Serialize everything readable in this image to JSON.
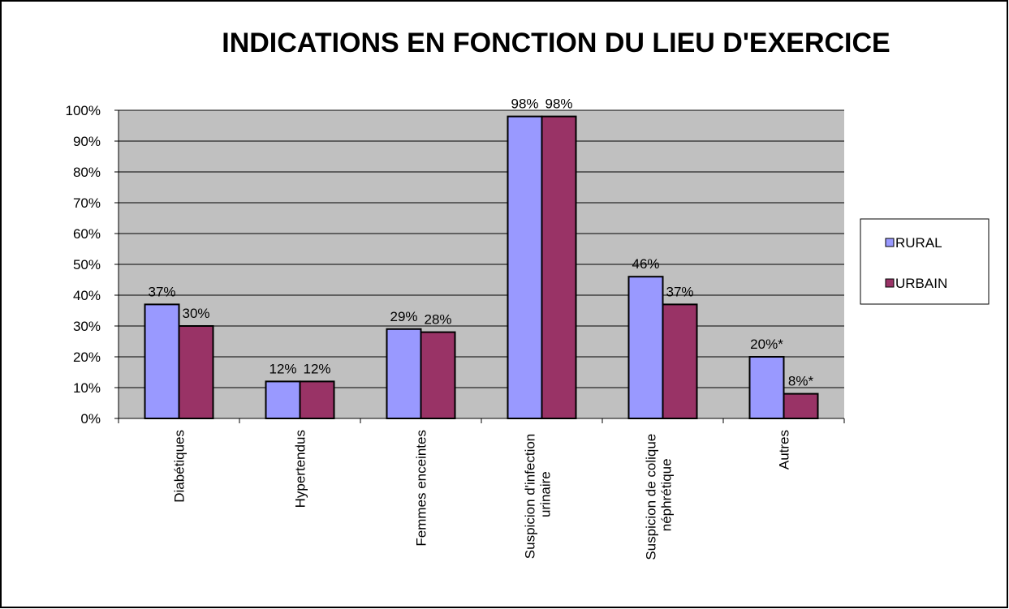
{
  "chart_data": {
    "type": "bar",
    "title": "INDICATIONS EN FONCTION DU LIEU D'EXERCICE",
    "categories": [
      "Diabétiques",
      "Hypertendus",
      "Femmes enceintes",
      "Suspicion d'infection urinaire",
      "Suspicion de colique néphrétique",
      "Autres"
    ],
    "series": [
      {
        "name": "RURAL",
        "color": "#9999ff",
        "values": [
          37,
          12,
          29,
          98,
          46,
          20
        ],
        "value_labels": [
          "37%",
          "12%",
          "29%",
          "98%",
          "46%",
          "20%*"
        ]
      },
      {
        "name": "URBAIN",
        "color": "#993366",
        "values": [
          30,
          12,
          28,
          98,
          37,
          8
        ],
        "value_labels": [
          "30%",
          "12%",
          "28%",
          "98%",
          "37%",
          "8%*"
        ]
      }
    ],
    "ylim": [
      0,
      100
    ],
    "yticks": [
      {
        "value": 0,
        "label": "0%"
      },
      {
        "value": 10,
        "label": "10%"
      },
      {
        "value": 20,
        "label": "20%"
      },
      {
        "value": 30,
        "label": "30%"
      },
      {
        "value": 40,
        "label": "40%"
      },
      {
        "value": 50,
        "label": "50%"
      },
      {
        "value": 60,
        "label": "60%"
      },
      {
        "value": 70,
        "label": "70%"
      },
      {
        "value": 80,
        "label": "80%"
      },
      {
        "value": 90,
        "label": "90%"
      },
      {
        "value": 100,
        "label": "100%"
      }
    ],
    "grid": true,
    "legend": "right"
  }
}
